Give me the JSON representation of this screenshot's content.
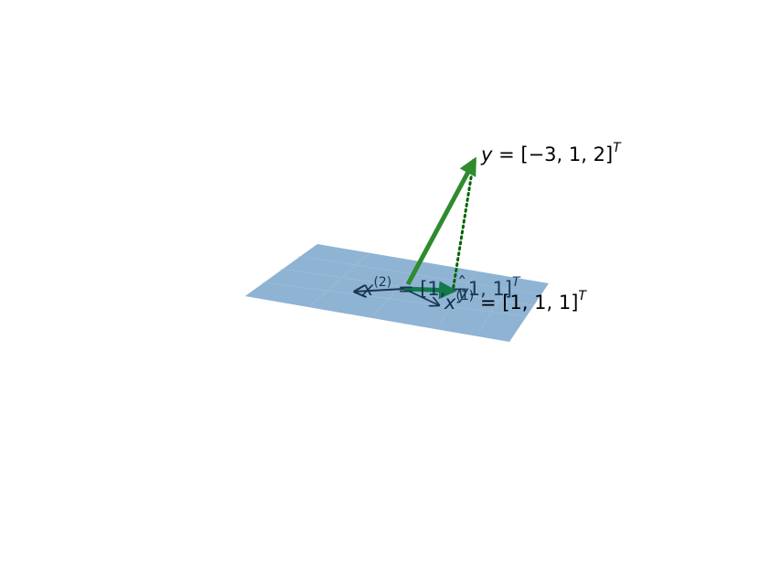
{
  "colors": {
    "plane_fill": "#8fb3d3",
    "plane_grid": "#a9c6df",
    "basis_vector": "#1a3550",
    "y_vector": "#2e8b2e",
    "projection_vector": "#127a4a",
    "residual_line": "#006400"
  },
  "labels": {
    "y": {
      "symbol": "y",
      "equals": " = ",
      "vector": "[−3, 1, 2]",
      "transpose": "T"
    },
    "x1": {
      "symbol": "x",
      "superscript": "(1)",
      "equals": " = ",
      "vector": "[1, 1, 1]",
      "transpose": "T"
    },
    "x2": {
      "symbol": "x",
      "superscript": "(2)",
      "equals": " = ",
      "vector": "[1, −1, 1]",
      "transpose": "T"
    },
    "y_hat": {
      "symbol": "y",
      "hat": "ˆ"
    }
  }
}
